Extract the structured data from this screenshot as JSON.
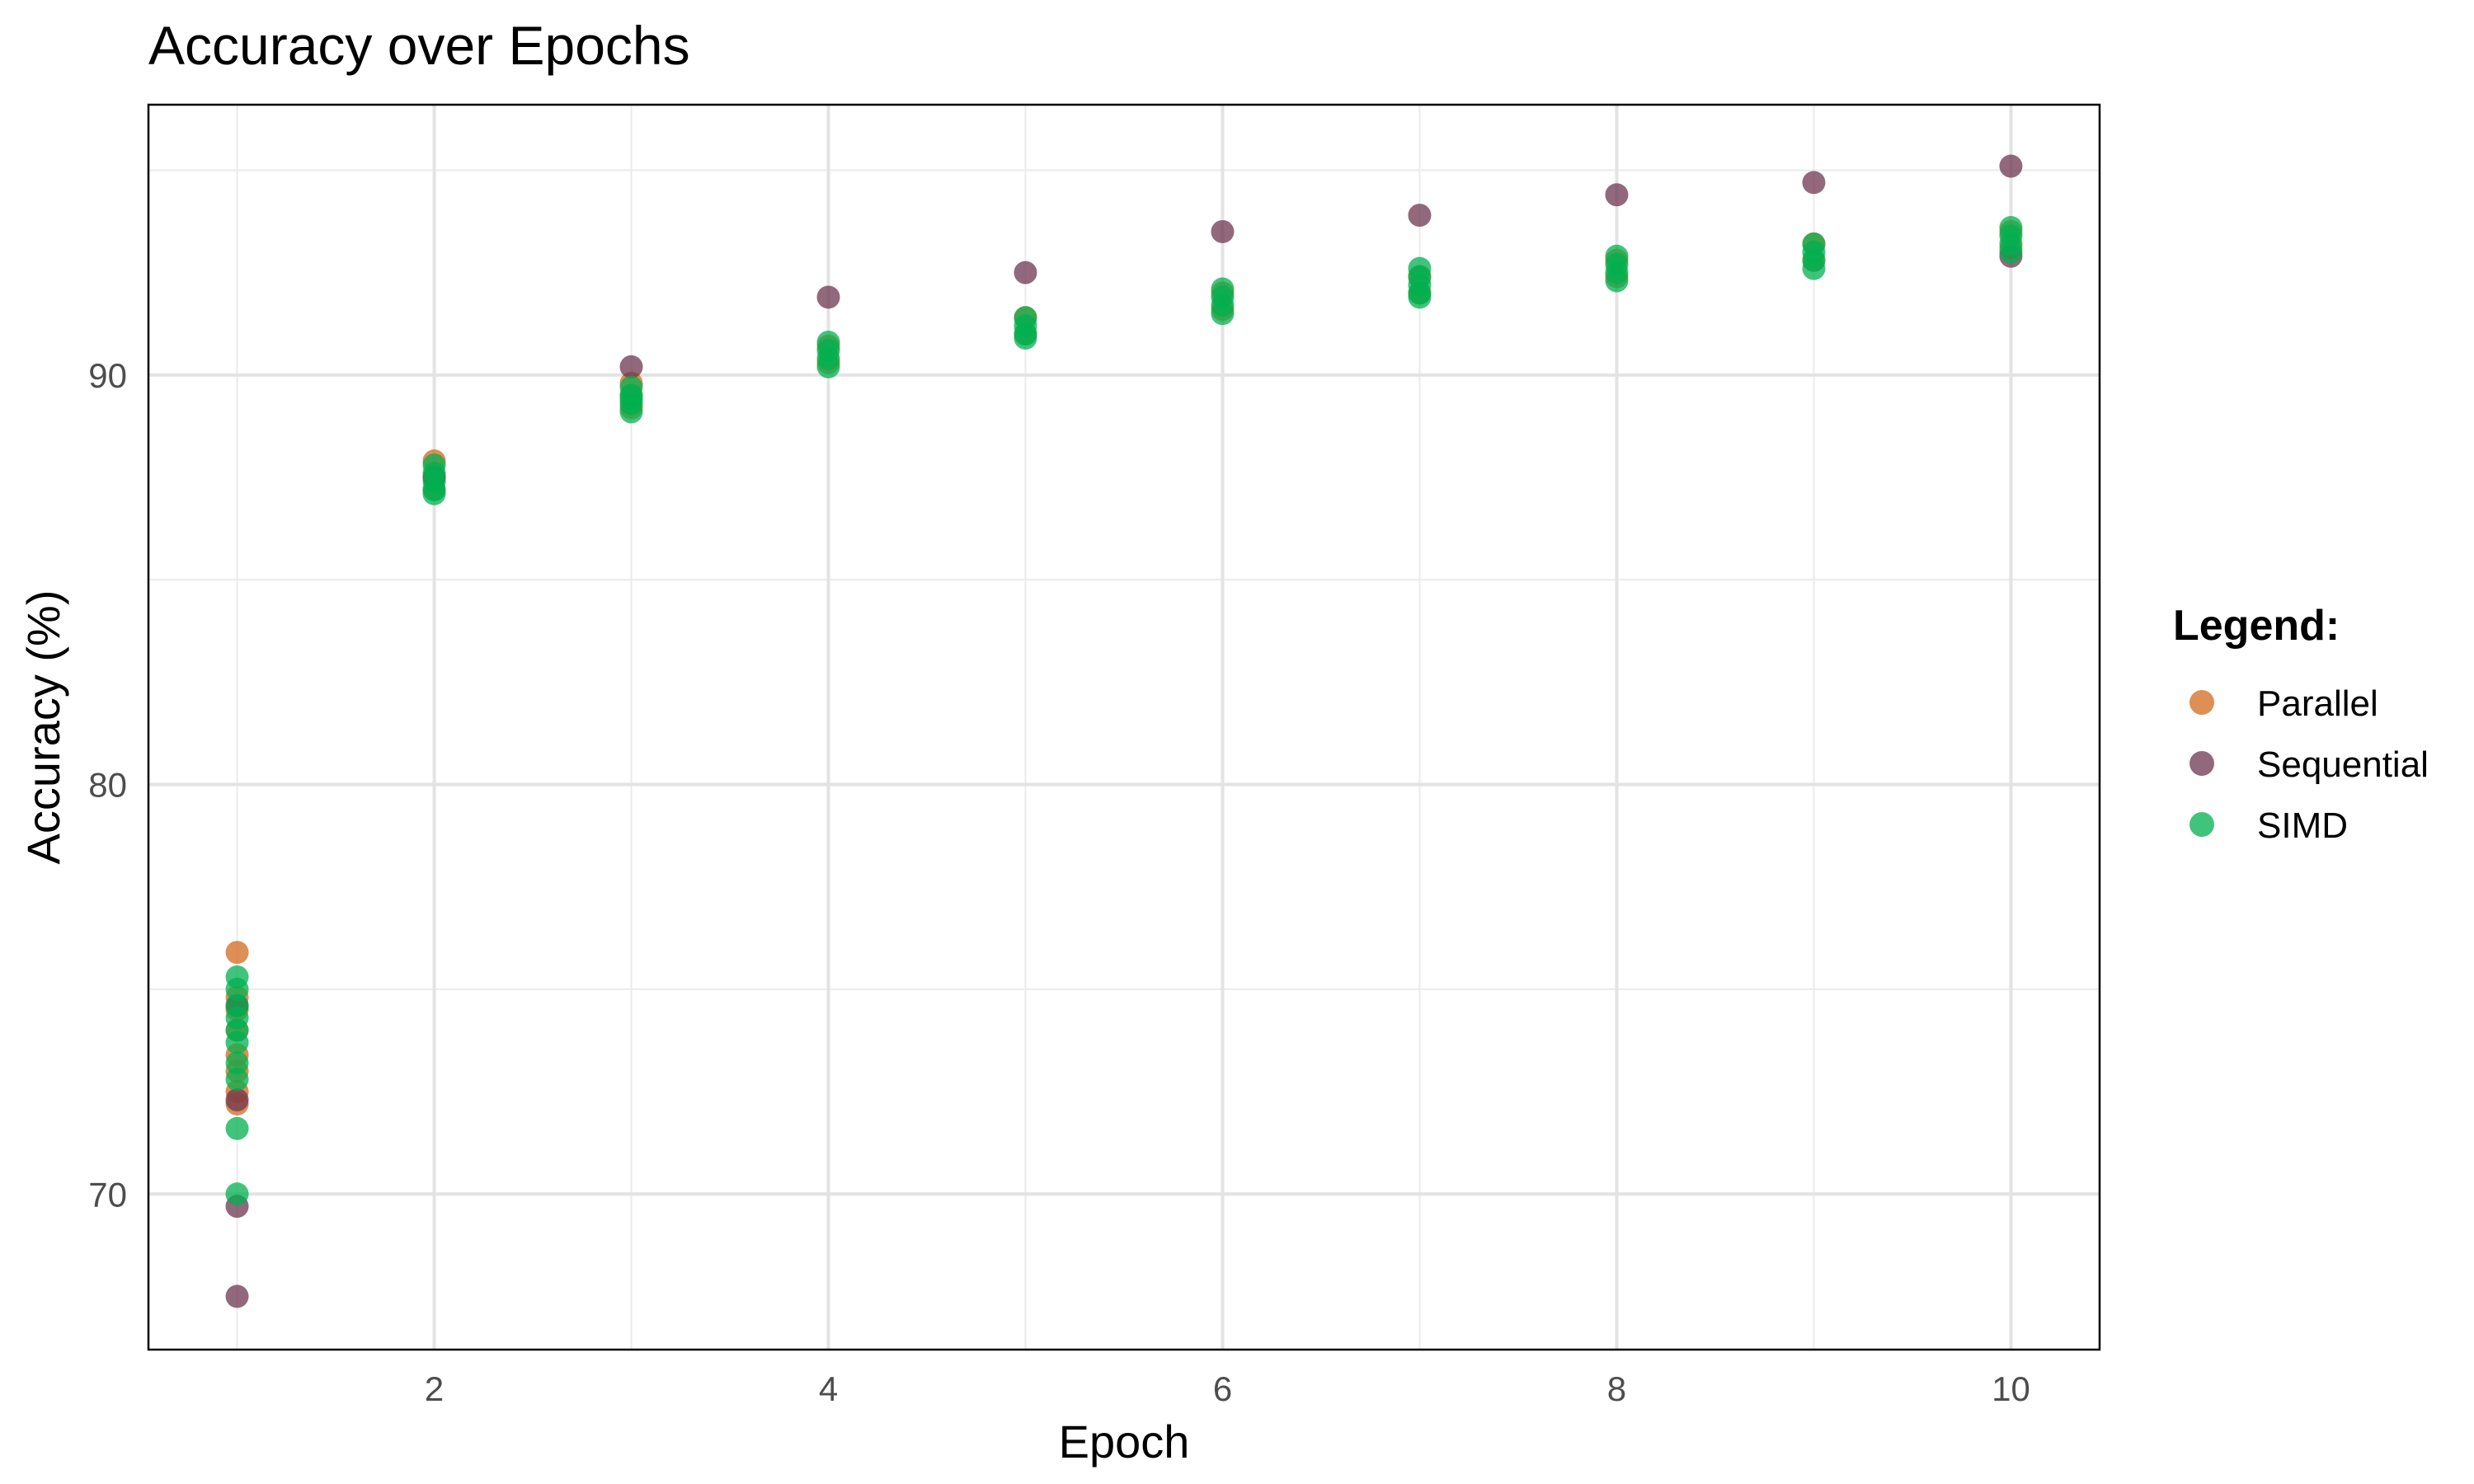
{
  "chart_data": {
    "type": "scatter",
    "title": "Accuracy over Epochs",
    "xlabel": "Epoch",
    "ylabel": "Accuracy (%)",
    "xlim": [
      0.55,
      10.45
    ],
    "ylim": [
      66.2,
      96.6
    ],
    "x_major_ticks": [
      2,
      4,
      6,
      8,
      10
    ],
    "x_minor_ticks": [
      1,
      3,
      5,
      7,
      9
    ],
    "y_major_ticks": [
      70,
      80,
      90
    ],
    "y_minor_ticks": [
      75,
      85,
      95
    ],
    "grid": true,
    "legend": {
      "title": "Legend:",
      "position": "right"
    },
    "series": [
      {
        "name": "Parallel",
        "color": "#D2691E",
        "x": [
          1,
          1,
          1,
          1,
          1,
          1,
          1,
          1,
          2,
          2,
          2,
          3,
          3,
          3,
          4,
          4,
          5,
          5,
          6,
          6,
          7,
          7,
          8,
          8,
          9,
          9,
          10,
          10
        ],
        "y": [
          75.9,
          74.8,
          74.5,
          74.0,
          73.4,
          73.0,
          72.5,
          72.2,
          87.9,
          87.5,
          87.2,
          89.8,
          89.5,
          89.2,
          90.7,
          90.3,
          91.4,
          91.0,
          92.0,
          91.6,
          92.4,
          92.0,
          92.8,
          92.4,
          93.2,
          92.8,
          93.5,
          93.1
        ]
      },
      {
        "name": "Sequential",
        "color": "#6E3550",
        "x": [
          1,
          1,
          1,
          1,
          2,
          3,
          4,
          5,
          6,
          7,
          8,
          9,
          10,
          10
        ],
        "y": [
          74.6,
          72.3,
          69.7,
          67.5,
          87.5,
          90.2,
          91.9,
          92.5,
          93.5,
          93.9,
          94.4,
          94.7,
          95.1,
          92.9
        ]
      },
      {
        "name": "SIMD",
        "color": "#00B050",
        "x": [
          1,
          1,
          1,
          1,
          1,
          1,
          1,
          1,
          1,
          1,
          2,
          2,
          2,
          2,
          2,
          3,
          3,
          3,
          3,
          3,
          4,
          4,
          4,
          4,
          5,
          5,
          5,
          5,
          6,
          6,
          6,
          6,
          7,
          7,
          7,
          7,
          7,
          8,
          8,
          8,
          8,
          9,
          9,
          9,
          9,
          10,
          10,
          10,
          10
        ],
        "y": [
          75.3,
          75.0,
          74.3,
          74.0,
          73.7,
          73.2,
          72.8,
          71.6,
          70.0,
          74.6,
          87.8,
          87.6,
          87.4,
          87.2,
          87.1,
          89.7,
          89.5,
          89.3,
          89.1,
          89.4,
          90.8,
          90.6,
          90.4,
          90.2,
          91.4,
          91.2,
          91.0,
          90.9,
          92.1,
          91.9,
          91.7,
          91.5,
          92.6,
          92.4,
          92.2,
          92.0,
          91.9,
          92.9,
          92.7,
          92.5,
          92.3,
          93.2,
          93.0,
          92.8,
          92.6,
          93.6,
          93.4,
          93.2,
          93.0
        ]
      }
    ]
  }
}
